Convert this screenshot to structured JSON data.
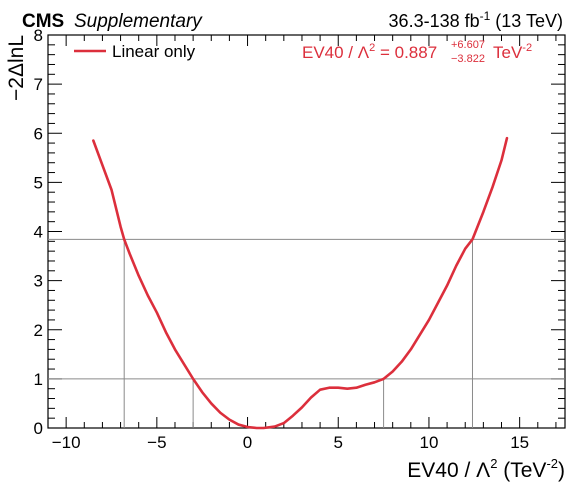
{
  "header": {
    "experiment": "CMS",
    "label": "Supplementary",
    "lumi_main": "36.3-138 fb",
    "lumi_sup": "-1",
    "lumi_suffix": " (13 TeV)"
  },
  "legend": {
    "entry": "Linear only",
    "color": "#dc2f3c"
  },
  "annotation": {
    "prefix": "EV40 / ",
    "lambda": "Λ",
    "lambda_sup": "2",
    "eq": " = 0.887",
    "err_up": "+6.607",
    "err_down": "−3.822",
    "unit": " TeV",
    "unit_sup": "-2",
    "color": "#dc2f3c"
  },
  "axes": {
    "ylabel": "−2ΔlnL",
    "xlabel_main": "EV40 / Λ",
    "xlabel_sup1": "2",
    "xlabel_mid": " (TeV",
    "xlabel_sup2": "-2",
    "xlabel_end": ")"
  },
  "chart_data": {
    "type": "line",
    "xlim": [
      -11.0,
      17.5
    ],
    "ylim": [
      0,
      8
    ],
    "xticks": [
      -10,
      -5,
      0,
      5,
      10,
      15
    ],
    "yticks": [
      0,
      1,
      2,
      3,
      4,
      5,
      6,
      7,
      8
    ],
    "xtick_labels": [
      "−10",
      "−5",
      "0",
      "5",
      "10",
      "15"
    ],
    "ytick_labels": [
      "0",
      "1",
      "2",
      "3",
      "4",
      "5",
      "6",
      "7",
      "8"
    ],
    "grid": false,
    "legend_position": "top-left",
    "thresholds": [
      {
        "y": 1.0,
        "x_low": -3.0,
        "x_high": 7.5
      },
      {
        "y": 3.84,
        "x_low": -6.8,
        "x_high": 12.4
      }
    ],
    "series": [
      {
        "name": "Linear only",
        "color": "#dc2f3c",
        "x": [
          -8.5,
          -8.0,
          -7.5,
          -7.0,
          -6.8,
          -6.5,
          -6.0,
          -5.5,
          -5.0,
          -4.5,
          -4.0,
          -3.5,
          -3.0,
          -2.5,
          -2.0,
          -1.5,
          -1.0,
          -0.5,
          0.0,
          0.5,
          0.887,
          1.5,
          2.0,
          2.5,
          3.0,
          3.5,
          4.0,
          4.5,
          5.0,
          5.5,
          6.0,
          6.5,
          7.0,
          7.5,
          8.0,
          8.5,
          9.0,
          9.5,
          10.0,
          10.5,
          11.0,
          11.5,
          12.0,
          12.4,
          13.0,
          13.5,
          14.0,
          14.3
        ],
        "y": [
          5.85,
          5.35,
          4.85,
          4.1,
          3.84,
          3.55,
          3.1,
          2.7,
          2.35,
          1.95,
          1.6,
          1.3,
          1.0,
          0.73,
          0.5,
          0.31,
          0.17,
          0.07,
          0.02,
          0.0,
          0.0,
          0.03,
          0.1,
          0.25,
          0.42,
          0.62,
          0.78,
          0.82,
          0.82,
          0.8,
          0.82,
          0.88,
          0.93,
          1.0,
          1.15,
          1.35,
          1.6,
          1.9,
          2.2,
          2.55,
          2.9,
          3.3,
          3.65,
          3.84,
          4.4,
          4.9,
          5.45,
          5.9
        ]
      }
    ]
  }
}
